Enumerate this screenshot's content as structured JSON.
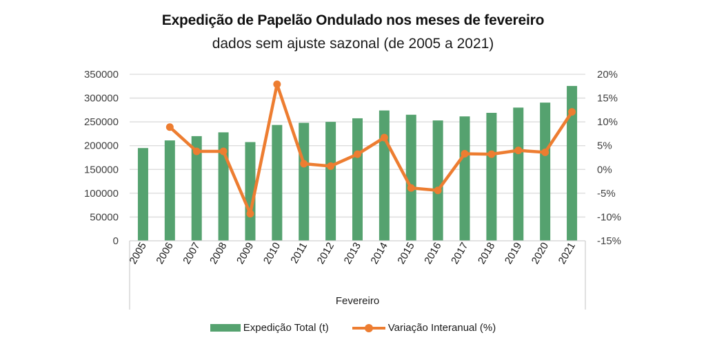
{
  "chart_data": {
    "type": "bar",
    "title": "Expedição de Papelão Ondulado nos meses de fevereiro",
    "subtitle": "dados sem ajuste sazonal (de 2005 a 2021)",
    "xlabel": "Fevereiro",
    "ylabel": "",
    "categories": [
      "2005",
      "2006",
      "2007",
      "2008",
      "2009",
      "2010",
      "2011",
      "2012",
      "2013",
      "2014",
      "2015",
      "2016",
      "2017",
      "2018",
      "2019",
      "2020",
      "2021"
    ],
    "series": [
      {
        "name": "Expedição Total (t)",
        "type": "bar",
        "axis": "left",
        "color": "#55A26F",
        "values": [
          195000,
          211000,
          220000,
          228000,
          207500,
          243500,
          248000,
          250000,
          257500,
          274000,
          265000,
          253000,
          261500,
          269000,
          280000,
          290500,
          325500
        ]
      },
      {
        "name": "Variação Interanual (%)",
        "type": "line",
        "axis": "right",
        "color": "#ED7D31",
        "values": [
          null,
          8.9,
          3.8,
          3.8,
          -9.3,
          17.9,
          1.2,
          0.7,
          3.2,
          6.7,
          -3.9,
          -4.4,
          3.3,
          3.2,
          4.0,
          3.6,
          12.1
        ]
      }
    ],
    "y_left": {
      "ylim": [
        0,
        350000
      ],
      "ticks": [
        0,
        50000,
        100000,
        150000,
        200000,
        250000,
        300000,
        350000
      ],
      "tick_labels": [
        "0",
        "50000",
        "100000",
        "150000",
        "200000",
        "250000",
        "300000",
        "350000"
      ]
    },
    "y_right": {
      "ylim": [
        -15,
        20
      ],
      "ticks": [
        -15,
        -10,
        -5,
        0,
        5,
        10,
        15,
        20
      ],
      "tick_labels": [
        "-15%",
        "-10%",
        "-5%",
        "0%",
        "5%",
        "10%",
        "15%",
        "20%"
      ]
    },
    "grid": true,
    "legend": {
      "position": "bottom",
      "entries": [
        "Expedição Total (t)",
        "Variação Interanual (%)"
      ]
    }
  }
}
